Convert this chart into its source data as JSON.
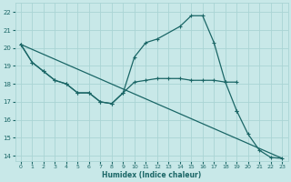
{
  "xlabel": "Humidex (Indice chaleur)",
  "bg_color": "#c8e8e8",
  "grid_color": "#aad4d4",
  "line_color": "#1a6666",
  "xlim": [
    -0.5,
    23.5
  ],
  "ylim": [
    13.7,
    22.5
  ],
  "xticks": [
    0,
    1,
    2,
    3,
    4,
    5,
    6,
    7,
    8,
    9,
    10,
    11,
    12,
    13,
    14,
    15,
    16,
    17,
    18,
    19,
    20,
    21,
    22,
    23
  ],
  "yticks": [
    14,
    15,
    16,
    17,
    18,
    19,
    20,
    21,
    22
  ],
  "s1x": [
    0,
    1,
    2,
    3,
    4,
    5,
    6,
    7,
    8,
    9,
    10,
    11,
    12,
    14,
    15,
    16,
    17,
    18,
    19
  ],
  "s1y": [
    20.2,
    19.2,
    18.7,
    18.2,
    18.0,
    17.5,
    17.5,
    17.0,
    16.9,
    17.5,
    19.5,
    20.3,
    20.5,
    21.2,
    21.8,
    21.8,
    20.3,
    18.1,
    16.5
  ],
  "s2x": [
    0,
    1,
    2,
    3,
    4,
    5,
    6,
    7,
    8,
    9,
    10,
    11,
    12,
    13,
    14,
    15,
    16,
    17,
    18,
    19
  ],
  "s2y": [
    20.2,
    19.2,
    18.7,
    18.2,
    18.0,
    17.5,
    17.5,
    17.0,
    16.9,
    17.5,
    18.1,
    18.2,
    18.3,
    18.3,
    18.3,
    18.2,
    18.2,
    18.2,
    18.1,
    18.1
  ],
  "s3x": [
    0,
    23
  ],
  "s3y": [
    20.2,
    13.85
  ],
  "s4x": [
    19,
    20,
    21,
    22,
    23
  ],
  "s4y": [
    16.5,
    15.2,
    14.3,
    13.9,
    13.85
  ]
}
